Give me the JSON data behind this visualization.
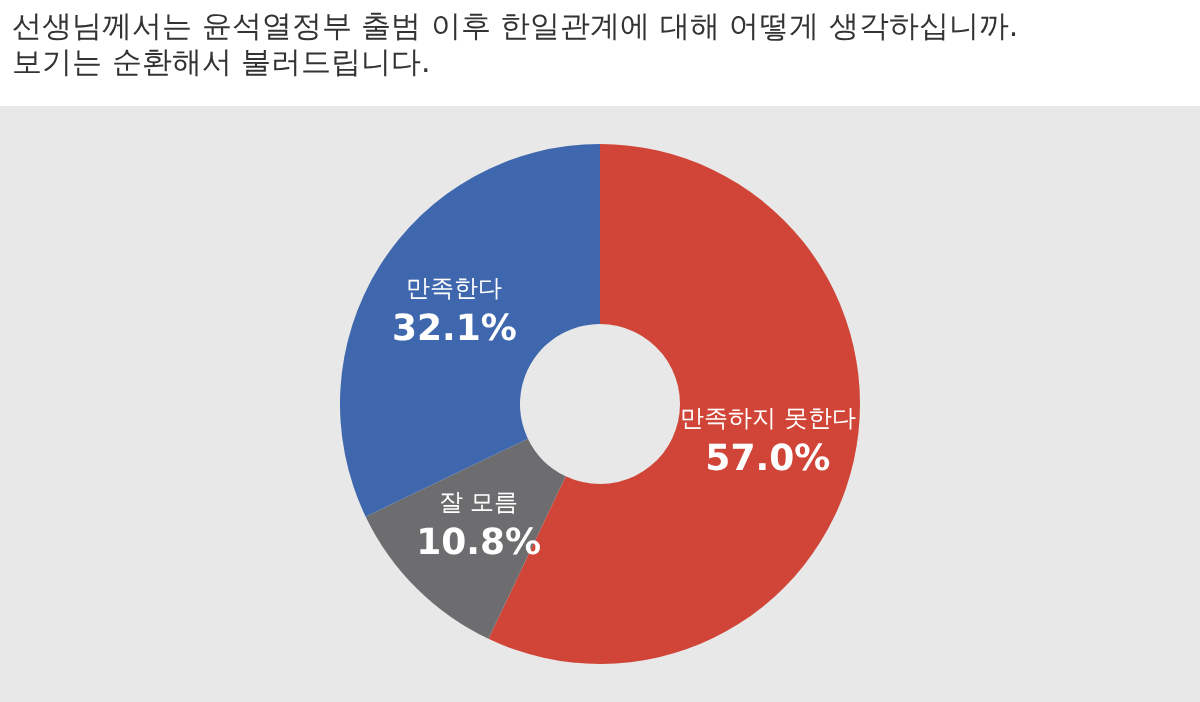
{
  "chart_data": {
    "type": "donut",
    "title": "선생님께서는 윤석열정부 출범 이후 한일관계에 대해 어떻게 생각하십니까.",
    "subtitle": "보기는 순환해서 불러드립니다.",
    "categories": [
      "만족하지 못한다",
      "잘 모름",
      "만족한다"
    ],
    "values": [
      57.0,
      10.8,
      32.1
    ],
    "value_labels": [
      "57.0%",
      "10.8%",
      "32.1%"
    ],
    "colors": [
      "#d04537",
      "#6d6d6f",
      "#3f67ae"
    ],
    "legend": false
  }
}
